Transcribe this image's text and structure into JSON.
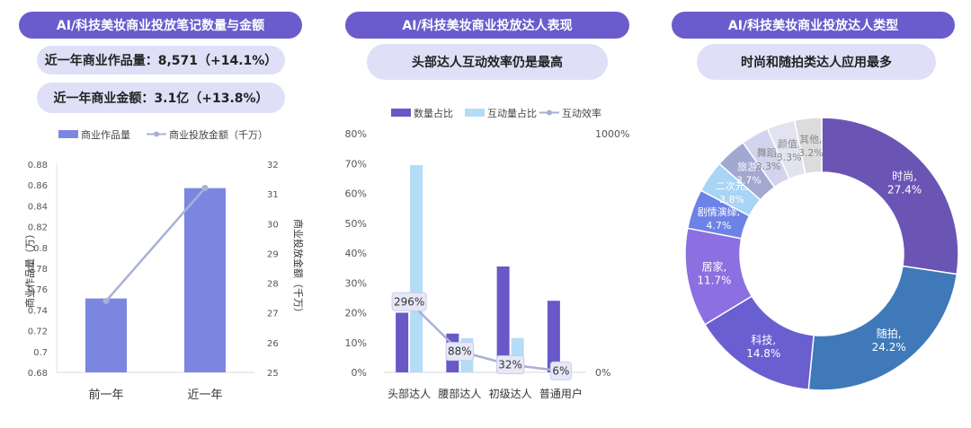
{
  "colors": {
    "title_bg": "#6a5ccc",
    "sub_bg": "#dfe0f7",
    "bar_purple": "#7b86e0",
    "line": "#a9b0d6"
  },
  "panels": [
    {
      "title": "AI/科技美妆商业投放笔记数量与金额",
      "subs": [
        "近一年商业作品量：8,571（+14.1%）",
        "近一年商业金额：3.1亿（+13.8%）"
      ]
    },
    {
      "title": "AI/科技美妆商业投放达人表现",
      "subs": [
        "头部达人互动效率仍是最高"
      ]
    },
    {
      "title": "AI/科技美妆商业投放达人类型",
      "subs": [
        "时尚和随拍类达人应用最多"
      ]
    }
  ],
  "chart_data": [
    {
      "type": "bar",
      "legend": [
        "商业作品量",
        "商业投放金额（千万）"
      ],
      "categories": [
        "前一年",
        "近一年"
      ],
      "series": [
        {
          "name": "商业作品量",
          "values": [
            0.751,
            0.857
          ],
          "axis": "left"
        },
        {
          "name": "商业投放金额（千万）",
          "type": "line",
          "values": [
            27.4,
            31.2
          ],
          "axis": "right"
        }
      ],
      "ylabel": "商业作品量（万）",
      "ylim": [
        0.68,
        0.88
      ],
      "y_ticks": [
        "0.68",
        "0.7",
        "0.72",
        "0.74",
        "0.76",
        "0.78",
        "0.8",
        "0.82",
        "0.84",
        "0.86",
        "0.88"
      ],
      "y2label": "商业投放金额（千万）",
      "y2lim": [
        25,
        32
      ],
      "y2_ticks": [
        "25",
        "26",
        "27",
        "28",
        "29",
        "30",
        "31",
        "32"
      ]
    },
    {
      "type": "bar",
      "legend": [
        "数量占比",
        "互动量占比",
        "互动效率"
      ],
      "categories": [
        "头部达人",
        "腰部达人",
        "初级达人",
        "普通用户"
      ],
      "series": [
        {
          "name": "数量占比",
          "values": [
            20,
            13,
            35.5,
            24
          ],
          "axis": "left"
        },
        {
          "name": "互动量占比",
          "values": [
            69.5,
            11.5,
            11.5,
            0
          ],
          "axis": "left"
        },
        {
          "name": "互动效率",
          "type": "line",
          "values": [
            296,
            88,
            32,
            6
          ],
          "labels": [
            "296%",
            "88%",
            "32%",
            "6%"
          ],
          "axis": "right"
        }
      ],
      "ylim": [
        0,
        80
      ],
      "y_ticks": [
        "0%",
        "10%",
        "20%",
        "30%",
        "40%",
        "50%",
        "60%",
        "70%",
        "80%"
      ],
      "y2lim": [
        0,
        1000
      ],
      "y2_ticks": [
        "0%",
        "1000%"
      ]
    },
    {
      "type": "pie",
      "slices": [
        {
          "name": "时尚",
          "value": 27.4,
          "label": "27.4%",
          "color": "#6a55b5"
        },
        {
          "name": "随拍",
          "value": 24.2,
          "label": "24.2%",
          "color": "#3f79b9"
        },
        {
          "name": "科技",
          "value": 14.8,
          "label": "14.8%",
          "color": "#6a5fd0"
        },
        {
          "name": "居家",
          "value": 11.7,
          "label": "11.7%",
          "color": "#8c6fe0"
        },
        {
          "name": "剧情演绎",
          "value": 4.7,
          "label": "4.7%",
          "color": "#6c82e6"
        },
        {
          "name": "二次元",
          "value": 3.8,
          "label": "3.8%",
          "color": "#a8d4f5"
        },
        {
          "name": "旅游",
          "value": 3.7,
          "label": "3.7%",
          "color": "#a2a8d0"
        },
        {
          "name": "舞蹈",
          "value": 3.3,
          "label": "3.3%",
          "color": "#d2d4ee"
        },
        {
          "name": "颜值",
          "value": 3.3,
          "label": "3.3%",
          "color": "#e3e3f0"
        },
        {
          "name": "其他",
          "value": 3.2,
          "label": "3.2%",
          "color": "#dcdcdc"
        }
      ]
    }
  ]
}
